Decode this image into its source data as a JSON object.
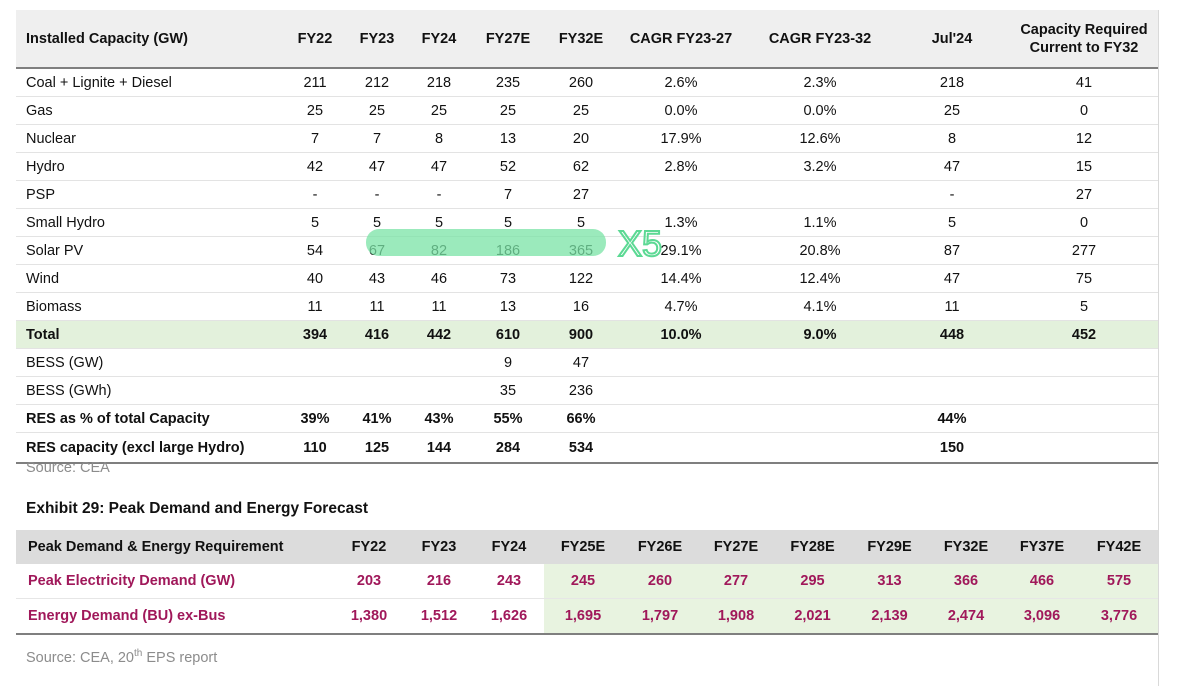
{
  "table1": {
    "headers": [
      "Installed Capacity (GW)",
      "FY22",
      "FY23",
      "FY24",
      "FY27E",
      "FY32E",
      "CAGR FY23-27",
      "CAGR FY23-32",
      "Jul'24",
      "Capacity Required Current to FY32"
    ],
    "rows": [
      {
        "label": "Coal + Lignite + Diesel",
        "cells": [
          "211",
          "212",
          "218",
          "235",
          "260",
          "2.6%",
          "2.3%",
          "218",
          "41"
        ]
      },
      {
        "label": "Gas",
        "cells": [
          "25",
          "25",
          "25",
          "25",
          "25",
          "0.0%",
          "0.0%",
          "25",
          "0"
        ]
      },
      {
        "label": "Nuclear",
        "cells": [
          "7",
          "7",
          "8",
          "13",
          "20",
          "17.9%",
          "12.6%",
          "8",
          "12"
        ]
      },
      {
        "label": "Hydro",
        "cells": [
          "42",
          "47",
          "47",
          "52",
          "62",
          "2.8%",
          "3.2%",
          "47",
          "15"
        ]
      },
      {
        "label": "PSP",
        "cells": [
          "-",
          "-",
          "-",
          "7",
          "27",
          "",
          "",
          "-",
          "27"
        ]
      },
      {
        "label": "Small Hydro",
        "cells": [
          "5",
          "5",
          "5",
          "5",
          "5",
          "1.3%",
          "1.1%",
          "5",
          "0"
        ]
      },
      {
        "label": "Solar PV",
        "cells": [
          "54",
          "67",
          "82",
          "186",
          "365",
          "29.1%",
          "20.8%",
          "87",
          "277"
        ]
      },
      {
        "label": "Wind",
        "cells": [
          "40",
          "43",
          "46",
          "73",
          "122",
          "14.4%",
          "12.4%",
          "47",
          "75"
        ]
      },
      {
        "label": "Biomass",
        "cells": [
          "11",
          "11",
          "11",
          "13",
          "16",
          "4.7%",
          "4.1%",
          "11",
          "5"
        ]
      },
      {
        "label": "Total",
        "cells": [
          "394",
          "416",
          "442",
          "610",
          "900",
          "10.0%",
          "9.0%",
          "448",
          "452"
        ]
      },
      {
        "label": "BESS (GW)",
        "cells": [
          "",
          "",
          "",
          "9",
          "47",
          "",
          "",
          "",
          ""
        ]
      },
      {
        "label": "BESS (GWh)",
        "cells": [
          "",
          "",
          "",
          "35",
          "236",
          "",
          "",
          "",
          ""
        ]
      },
      {
        "label": "RES as % of total Capacity",
        "cells": [
          "39%",
          "41%",
          "43%",
          "55%",
          "66%",
          "",
          "",
          "44%",
          ""
        ]
      },
      {
        "label": "RES capacity (excl large Hydro)",
        "cells": [
          "110",
          "125",
          "144",
          "284",
          "534",
          "",
          "",
          "150",
          ""
        ]
      }
    ],
    "source": "Source: CEA",
    "annotation": "X5"
  },
  "exhibit_title": "Exhibit 29: Peak Demand and Energy Forecast",
  "table2": {
    "headers": [
      "Peak Demand & Energy Requirement",
      "FY22",
      "FY23",
      "FY24",
      "FY25E",
      "FY26E",
      "FY27E",
      "FY28E",
      "FY29E",
      "FY32E",
      "FY37E",
      "FY42E"
    ],
    "rows": [
      {
        "label": "Peak Electricity Demand (GW)",
        "cells": [
          "203",
          "216",
          "243",
          "245",
          "260",
          "277",
          "295",
          "313",
          "366",
          "466",
          "575"
        ]
      },
      {
        "label": "Energy Demand (BU) ex-Bus",
        "cells": [
          "1,380",
          "1,512",
          "1,626",
          "1,695",
          "1,797",
          "1,908",
          "2,021",
          "2,139",
          "2,474",
          "3,096",
          "3,776"
        ]
      }
    ],
    "source_prefix": "Source: CEA, 20",
    "source_sup": "th",
    "source_suffix": " EPS report"
  },
  "colors": {
    "highlight_marker": "#79e3a6",
    "total_row_bg": "#e3f1dc",
    "forecast_bg": "#e8f3e0",
    "demand_text": "#a0185a",
    "header_bg": "#efefef"
  }
}
